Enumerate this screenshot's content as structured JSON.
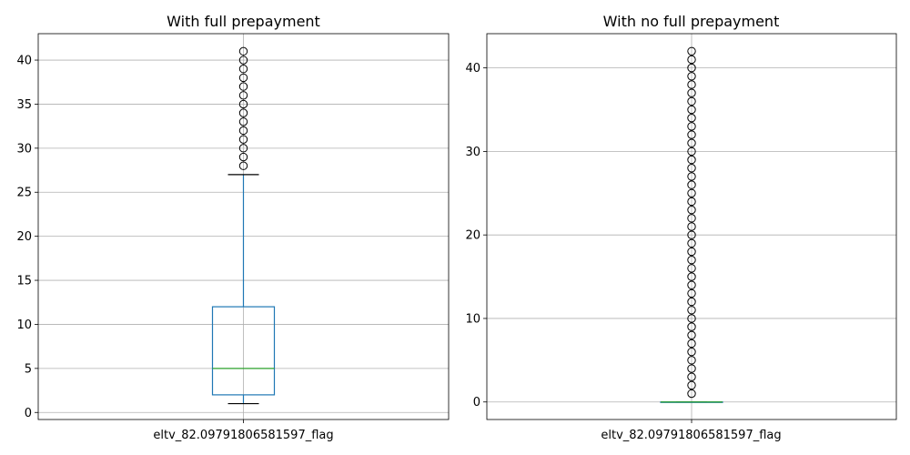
{
  "chart_data": [
    {
      "type": "boxplot",
      "title": "With full prepayment",
      "categories": [
        "eltv_82.09791806581597_flag"
      ],
      "ylim": [
        -0.8,
        43
      ],
      "yticks": [
        0,
        5,
        10,
        15,
        20,
        25,
        30,
        35,
        40
      ],
      "grid": true,
      "box": {
        "whisker_low": 1,
        "q1": 2,
        "median": 5,
        "q3": 12,
        "whisker_high": 27
      },
      "outliers": [
        28,
        29,
        30,
        31,
        32,
        33,
        34,
        35,
        36,
        37,
        38,
        39,
        40,
        41
      ],
      "colors": {
        "box": "#1f77b4",
        "median": "#2ca02c",
        "whisker_cap": "#000000",
        "grid": "#b0b0b0",
        "outlier": "#000000"
      }
    },
    {
      "type": "boxplot",
      "title": "With no full prepayment",
      "categories": [
        "eltv_82.09791806581597_flag"
      ],
      "ylim": [
        -2.1,
        44.1
      ],
      "yticks": [
        0,
        10,
        20,
        30,
        40
      ],
      "grid": true,
      "box": {
        "whisker_low": 0,
        "q1": 0,
        "median": 0,
        "q3": 0,
        "whisker_high": 0
      },
      "outliers": [
        1,
        2,
        3,
        4,
        5,
        6,
        7,
        8,
        9,
        10,
        11,
        12,
        13,
        14,
        15,
        16,
        17,
        18,
        19,
        20,
        21,
        22,
        23,
        24,
        25,
        26,
        27,
        28,
        29,
        30,
        31,
        32,
        33,
        34,
        35,
        36,
        37,
        38,
        39,
        40,
        41,
        42
      ],
      "colors": {
        "box": "#1f77b4",
        "median": "#2ca02c",
        "whisker_cap": "#000000",
        "grid": "#b0b0b0",
        "outlier": "#000000"
      }
    }
  ]
}
